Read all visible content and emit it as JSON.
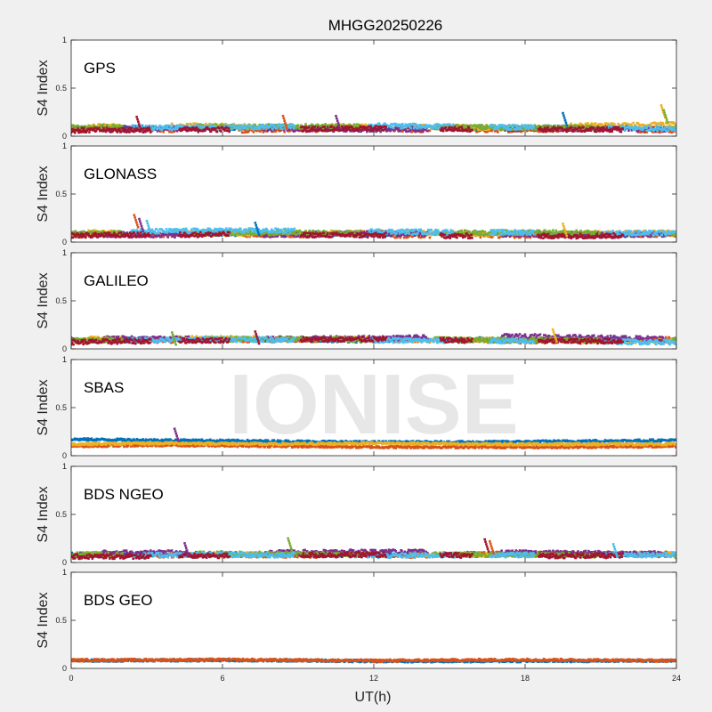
{
  "title": "MHGG20250226",
  "watermark": "IONISE",
  "colors": [
    "#0072BD",
    "#D95319",
    "#EDB120",
    "#7E2F8E",
    "#77AC30",
    "#4DBEEE",
    "#A2142F"
  ],
  "chart_data": {
    "type": "scatter",
    "xlabel": "UT(h)",
    "ylabel": "S4 Index",
    "xlim": [
      0,
      24
    ],
    "ylim": [
      0,
      1
    ],
    "xticks": [
      "0",
      "6",
      "12",
      "18",
      "24"
    ],
    "yticks": [
      "0",
      "0.5",
      "1"
    ],
    "grid": false,
    "panels": [
      {
        "label": "GPS",
        "baseline": 0.08,
        "spikes": [
          {
            "x": 19.5,
            "y": 0.24
          },
          {
            "x": 23.4,
            "y": 0.32
          },
          {
            "x": 23.5,
            "y": 0.27
          },
          {
            "x": 2.6,
            "y": 0.2
          },
          {
            "x": 8.4,
            "y": 0.21
          },
          {
            "x": 10.5,
            "y": 0.21
          }
        ],
        "series": [
          {
            "values": [
              [
                0,
                0.08
              ],
              [
                2,
                0.09
              ],
              [
                4,
                0.08
              ],
              [
                6,
                0.09
              ],
              [
                8,
                0.08
              ],
              [
                10,
                0.09
              ],
              [
                12,
                0.08
              ],
              [
                14,
                0.09
              ],
              [
                16,
                0.08
              ],
              [
                18,
                0.09
              ],
              [
                20,
                0.08
              ],
              [
                22,
                0.09
              ],
              [
                24,
                0.08
              ]
            ]
          },
          {
            "values": [
              [
                0,
                0.06
              ],
              [
                3,
                0.07
              ],
              [
                6,
                0.06
              ],
              [
                9,
                0.07
              ],
              [
                12,
                0.07
              ],
              [
                15,
                0.06
              ],
              [
                18,
                0.07
              ],
              [
                21,
                0.07
              ],
              [
                24,
                0.06
              ]
            ]
          },
          {
            "values": [
              [
                0,
                0.1
              ],
              [
                4,
                0.11
              ],
              [
                8,
                0.1
              ],
              [
                12,
                0.1
              ],
              [
                16,
                0.09
              ],
              [
                20,
                0.11
              ],
              [
                24,
                0.12
              ]
            ]
          },
          {
            "values": [
              [
                0,
                0.07
              ],
              [
                6,
                0.08
              ],
              [
                12,
                0.07
              ],
              [
                18,
                0.08
              ],
              [
                24,
                0.07
              ]
            ]
          },
          {
            "values": [
              [
                0,
                0.09
              ],
              [
                6,
                0.1
              ],
              [
                12,
                0.1
              ],
              [
                18,
                0.09
              ],
              [
                24,
                0.08
              ]
            ]
          },
          {
            "values": [
              [
                0,
                0.08
              ],
              [
                6,
                0.09
              ],
              [
                12,
                0.11
              ],
              [
                18,
                0.09
              ],
              [
                24,
                0.08
              ]
            ]
          },
          {
            "values": [
              [
                0,
                0.06
              ],
              [
                6,
                0.07
              ],
              [
                12,
                0.08
              ],
              [
                18,
                0.07
              ],
              [
                24,
                0.07
              ]
            ]
          }
        ]
      },
      {
        "label": "GLONASS",
        "baseline": 0.08,
        "spikes": [
          {
            "x": 2.5,
            "y": 0.28
          },
          {
            "x": 2.7,
            "y": 0.24
          },
          {
            "x": 3.0,
            "y": 0.22
          },
          {
            "x": 7.3,
            "y": 0.2
          },
          {
            "x": 19.5,
            "y": 0.19
          }
        ],
        "series": [
          {
            "values": [
              [
                0,
                0.08
              ],
              [
                6,
                0.09
              ],
              [
                12,
                0.08
              ],
              [
                18,
                0.09
              ],
              [
                24,
                0.07
              ]
            ]
          },
          {
            "values": [
              [
                0,
                0.07
              ],
              [
                6,
                0.08
              ],
              [
                12,
                0.07
              ],
              [
                18,
                0.07
              ],
              [
                24,
                0.08
              ]
            ]
          },
          {
            "values": [
              [
                0,
                0.1
              ],
              [
                6,
                0.09
              ],
              [
                12,
                0.1
              ],
              [
                18,
                0.08
              ],
              [
                24,
                0.1
              ]
            ]
          },
          {
            "values": [
              [
                0,
                0.08
              ],
              [
                6,
                0.07
              ],
              [
                12,
                0.09
              ],
              [
                18,
                0.08
              ],
              [
                24,
                0.08
              ]
            ]
          },
          {
            "values": [
              [
                0,
                0.09
              ],
              [
                6,
                0.1
              ],
              [
                12,
                0.09
              ],
              [
                18,
                0.1
              ],
              [
                24,
                0.09
              ]
            ]
          },
          {
            "values": [
              [
                0,
                0.1
              ],
              [
                6,
                0.12
              ],
              [
                12,
                0.11
              ],
              [
                18,
                0.1
              ],
              [
                24,
                0.09
              ]
            ]
          },
          {
            "values": [
              [
                0,
                0.07
              ],
              [
                6,
                0.08
              ],
              [
                12,
                0.07
              ],
              [
                18,
                0.06
              ],
              [
                24,
                0.07
              ]
            ]
          }
        ]
      },
      {
        "label": "GALILEO",
        "baseline": 0.09,
        "spikes": [
          {
            "x": 19.1,
            "y": 0.2
          },
          {
            "x": 4.0,
            "y": 0.17
          },
          {
            "x": 7.3,
            "y": 0.18
          }
        ],
        "series": [
          {
            "values": [
              [
                0,
                0.09
              ],
              [
                6,
                0.1
              ],
              [
                12,
                0.09
              ],
              [
                18,
                0.1
              ],
              [
                24,
                0.09
              ]
            ]
          },
          {
            "values": [
              [
                0,
                0.08
              ],
              [
                6,
                0.09
              ],
              [
                12,
                0.1
              ],
              [
                18,
                0.08
              ],
              [
                24,
                0.1
              ]
            ]
          },
          {
            "values": [
              [
                0,
                0.1
              ],
              [
                6,
                0.11
              ],
              [
                12,
                0.1
              ],
              [
                18,
                0.09
              ],
              [
                24,
                0.08
              ]
            ]
          },
          {
            "values": [
              [
                0,
                0.11
              ],
              [
                6,
                0.1
              ],
              [
                12,
                0.11
              ],
              [
                18,
                0.13
              ],
              [
                24,
                0.1
              ]
            ]
          },
          {
            "values": [
              [
                0,
                0.09
              ],
              [
                6,
                0.1
              ],
              [
                12,
                0.1
              ],
              [
                18,
                0.09
              ],
              [
                24,
                0.09
              ]
            ]
          },
          {
            "values": [
              [
                0,
                0.08
              ],
              [
                6,
                0.1
              ],
              [
                12,
                0.09
              ],
              [
                18,
                0.08
              ],
              [
                24,
                0.07
              ]
            ]
          },
          {
            "values": [
              [
                0,
                0.07
              ],
              [
                6,
                0.09
              ],
              [
                12,
                0.1
              ],
              [
                18,
                0.08
              ],
              [
                24,
                0.08
              ]
            ]
          }
        ]
      },
      {
        "label": "SBAS",
        "baseline": 0.13,
        "spikes": [
          {
            "x": 4.1,
            "y": 0.28
          }
        ],
        "series": [
          {
            "values": [
              [
                0,
                0.17
              ],
              [
                4,
                0.16
              ],
              [
                8,
                0.15
              ],
              [
                12,
                0.14
              ],
              [
                16,
                0.14
              ],
              [
                20,
                0.15
              ],
              [
                24,
                0.16
              ]
            ]
          },
          {
            "values": [
              [
                0,
                0.1
              ],
              [
                4,
                0.11
              ],
              [
                8,
                0.1
              ],
              [
                12,
                0.09
              ],
              [
                16,
                0.09
              ],
              [
                20,
                0.09
              ],
              [
                24,
                0.1
              ]
            ]
          },
          {
            "values": [
              [
                0,
                0.12
              ],
              [
                4,
                0.13
              ],
              [
                8,
                0.12
              ],
              [
                12,
                0.13
              ],
              [
                16,
                0.12
              ],
              [
                20,
                0.12
              ],
              [
                24,
                0.12
              ]
            ]
          }
        ]
      },
      {
        "label": "BDS NGEO",
        "baseline": 0.08,
        "spikes": [
          {
            "x": 8.6,
            "y": 0.25
          },
          {
            "x": 16.4,
            "y": 0.24
          },
          {
            "x": 16.6,
            "y": 0.22
          },
          {
            "x": 4.5,
            "y": 0.2
          },
          {
            "x": 21.5,
            "y": 0.19
          }
        ],
        "series": [
          {
            "values": [
              [
                0,
                0.08
              ],
              [
                6,
                0.09
              ],
              [
                12,
                0.08
              ],
              [
                18,
                0.09
              ],
              [
                24,
                0.08
              ]
            ]
          },
          {
            "values": [
              [
                0,
                0.07
              ],
              [
                6,
                0.08
              ],
              [
                12,
                0.07
              ],
              [
                18,
                0.09
              ],
              [
                24,
                0.08
              ]
            ]
          },
          {
            "values": [
              [
                0,
                0.09
              ],
              [
                6,
                0.08
              ],
              [
                12,
                0.09
              ],
              [
                18,
                0.08
              ],
              [
                24,
                0.09
              ]
            ]
          },
          {
            "values": [
              [
                0,
                0.1
              ],
              [
                6,
                0.1
              ],
              [
                12,
                0.11
              ],
              [
                18,
                0.1
              ],
              [
                24,
                0.09
              ]
            ]
          },
          {
            "values": [
              [
                0,
                0.08
              ],
              [
                6,
                0.09
              ],
              [
                12,
                0.08
              ],
              [
                18,
                0.08
              ],
              [
                24,
                0.07
              ]
            ]
          },
          {
            "values": [
              [
                0,
                0.07
              ],
              [
                6,
                0.08
              ],
              [
                12,
                0.07
              ],
              [
                18,
                0.08
              ],
              [
                24,
                0.08
              ]
            ]
          },
          {
            "values": [
              [
                0,
                0.06
              ],
              [
                6,
                0.07
              ],
              [
                12,
                0.08
              ],
              [
                18,
                0.07
              ],
              [
                24,
                0.07
              ]
            ]
          }
        ]
      },
      {
        "label": "BDS GEO",
        "baseline": 0.08,
        "spikes": [],
        "series": [
          {
            "values": [
              [
                0,
                0.08
              ],
              [
                6,
                0.085
              ],
              [
                10,
                0.08
              ],
              [
                12,
                0.075
              ],
              [
                16,
                0.075
              ],
              [
                24,
                0.08
              ]
            ]
          },
          {
            "values": [
              [
                0,
                0.085
              ],
              [
                6,
                0.09
              ],
              [
                9,
                0.085
              ],
              [
                12,
                0.08
              ],
              [
                18,
                0.09
              ],
              [
                24,
                0.08
              ]
            ]
          }
        ]
      }
    ]
  }
}
